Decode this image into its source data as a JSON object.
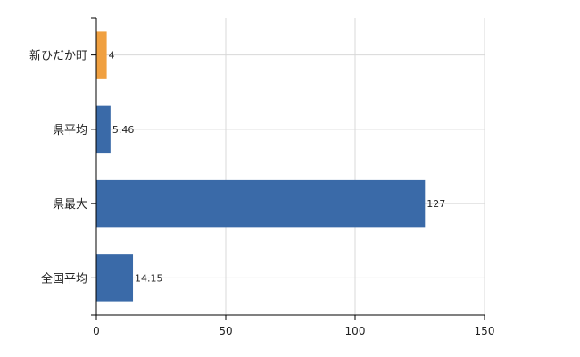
{
  "chart_data": {
    "type": "bar",
    "orientation": "horizontal",
    "categories": [
      "新ひだか町",
      "県平均",
      "県最大",
      "全国平均"
    ],
    "values": [
      4,
      5.46,
      127,
      14.15
    ],
    "value_labels": [
      "4",
      "5.46",
      "127",
      "14.15"
    ],
    "bar_colors": [
      "#f0a040",
      "#3a6aa8",
      "#3a6aa8",
      "#3a6aa8"
    ],
    "xlim": [
      0,
      150
    ],
    "xticks": [
      0,
      50,
      100,
      150
    ],
    "grid": true,
    "title": "",
    "xlabel": "",
    "ylabel": ""
  },
  "colors": {
    "highlight": "#f0a040",
    "bar": "#3a6aa8",
    "grid": "#d8d8d8",
    "axis": "#000000"
  }
}
